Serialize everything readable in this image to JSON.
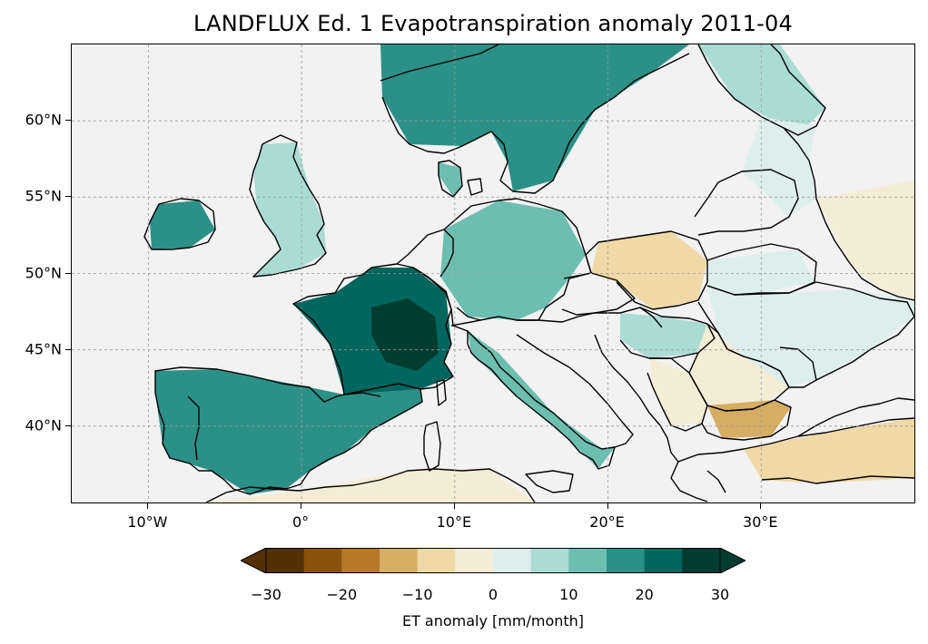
{
  "title": "LANDFLUX Ed. 1 Evapotranspiration anomaly 2011-04",
  "map": {
    "background_color": "#f2f2f2",
    "lon_range": [
      -15,
      40
    ],
    "lat_range": [
      35,
      65
    ],
    "lat_ticks": [
      {
        "value": 40,
        "label": "40°N"
      },
      {
        "value": 45,
        "label": "45°N"
      },
      {
        "value": 50,
        "label": "50°N"
      },
      {
        "value": 55,
        "label": "55°N"
      },
      {
        "value": 60,
        "label": "60°N"
      }
    ],
    "lon_ticks": [
      {
        "value": -10,
        "label": "10°W"
      },
      {
        "value": 0,
        "label": "0°"
      },
      {
        "value": 10,
        "label": "10°E"
      },
      {
        "value": 20,
        "label": "20°E"
      },
      {
        "value": 30,
        "label": "30°E"
      }
    ],
    "gridlines": true,
    "coastlines": true,
    "borders": true
  },
  "colorbar": {
    "label": "ET anomaly [mm/month]",
    "ticks": [
      "−30",
      "−20",
      "−10",
      "0",
      "10",
      "20",
      "30"
    ],
    "levels": [
      -30,
      -25,
      -20,
      -15,
      -10,
      -5,
      0,
      5,
      10,
      15,
      20,
      25,
      30
    ],
    "colors": [
      "#543005",
      "#8c510a",
      "#b7782a",
      "#d5ad63",
      "#efd9a6",
      "#f5ecd6",
      "#ddefec",
      "#abdcd3",
      "#6cbfb0",
      "#2b9086",
      "#00665e",
      "#003c30"
    ],
    "extend": "both"
  }
}
